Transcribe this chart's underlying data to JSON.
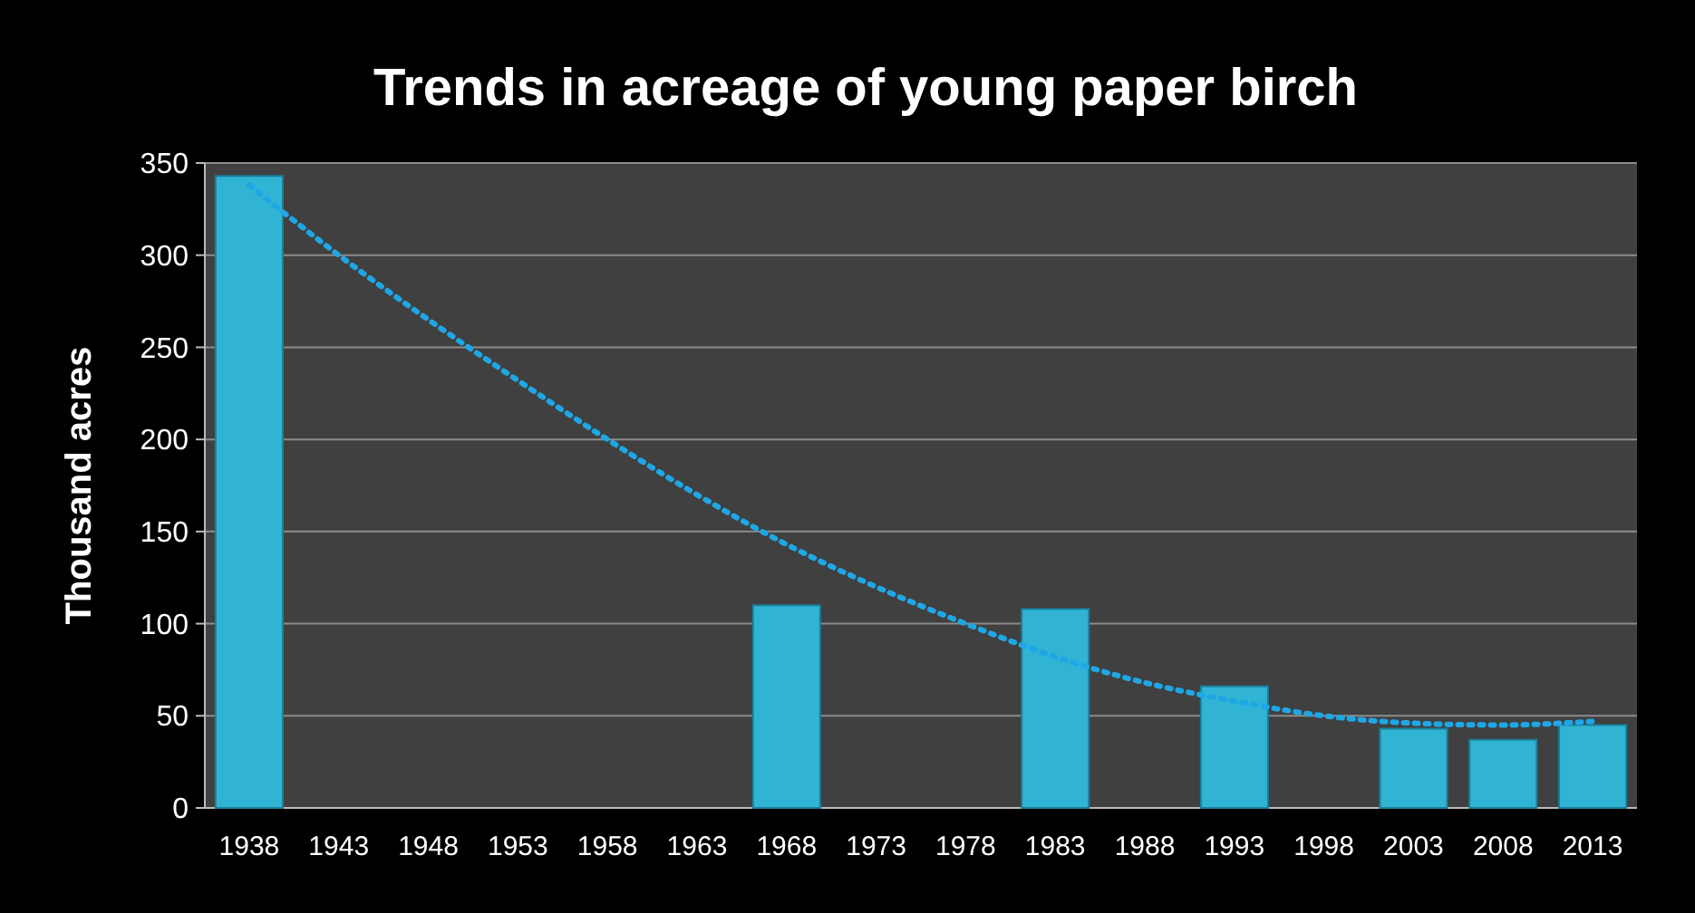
{
  "chart_data": {
    "type": "bar",
    "title": "Trends in acreage of  young paper birch",
    "ylabel": "Thousand  acres",
    "categories": [
      "1938",
      "1943",
      "1948",
      "1953",
      "1958",
      "1963",
      "1968",
      "1973",
      "1978",
      "1983",
      "1988",
      "1993",
      "1998",
      "2003",
      "2008",
      "2013"
    ],
    "series": [
      {
        "color": "#31b4d4",
        "values": [
          343,
          null,
          null,
          null,
          null,
          null,
          110,
          null,
          null,
          108,
          null,
          66,
          null,
          43,
          37,
          45
        ]
      },
      {
        "type": "line",
        "color": "#1ea7e6",
        "line_style": "dotted",
        "values": [
          338,
          300,
          265,
          232,
          200,
          170,
          143,
          120,
          100,
          82,
          68,
          58,
          50,
          46,
          45,
          47
        ]
      }
    ],
    "ylim": [
      0,
      350
    ],
    "yticks": [
      0,
      50,
      100,
      150,
      200,
      250,
      300,
      350
    ],
    "grid": "y"
  }
}
